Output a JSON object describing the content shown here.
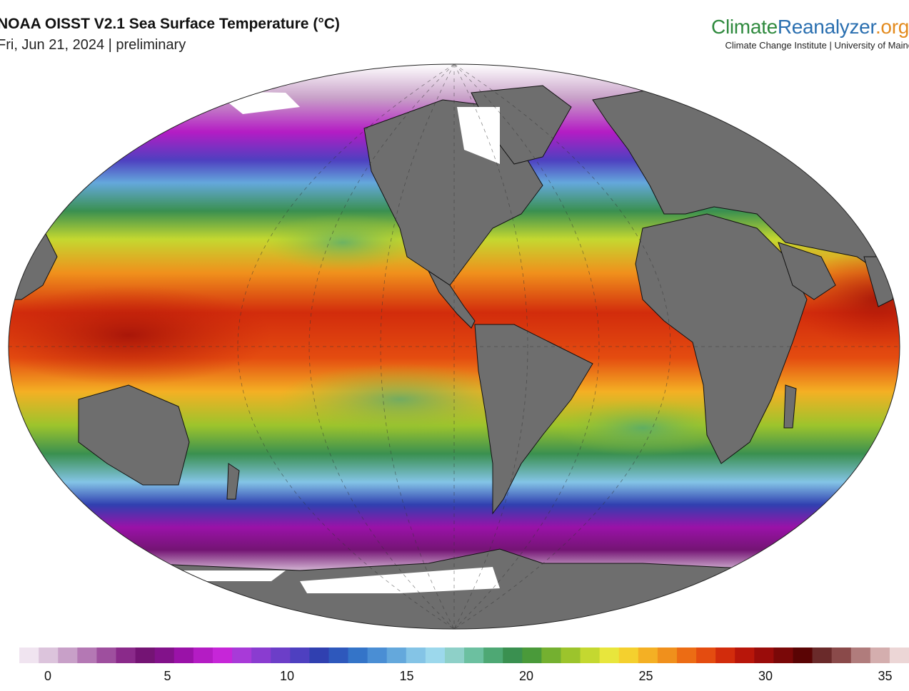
{
  "header": {
    "title": "NOAA OISST V2.1 Sea Surface Temperature (°C)",
    "subtitle": "Fri, Jun 21, 2024 | preliminary"
  },
  "brand": {
    "name_part1": "Climate",
    "name_part2": "Reanalyzer",
    "name_part3": ".org",
    "subtitle": "Climate Change Institute | University of Maine"
  },
  "map": {
    "projection": "robinson-like ellipse",
    "land_color": "#6e6e6e",
    "ice_color": "#ffffff",
    "border_color": "#111111"
  },
  "colorbar": {
    "ticks": [
      {
        "label": "0",
        "value": 0
      },
      {
        "label": "5",
        "value": 5
      },
      {
        "label": "10",
        "value": 10
      },
      {
        "label": "15",
        "value": 15
      },
      {
        "label": "20",
        "value": 20
      },
      {
        "label": "25",
        "value": 25
      },
      {
        "label": "30",
        "value": 30
      },
      {
        "label": "35",
        "value": 35
      }
    ],
    "range": [
      -2,
      36
    ],
    "palette": [
      "#ffffff",
      "#f0e4f0",
      "#dcc4dc",
      "#c8a0c8",
      "#b478b4",
      "#9e4f9e",
      "#8a2a8a",
      "#741474",
      "#82128a",
      "#9a12a8",
      "#b41cc4",
      "#c626d8",
      "#a83ad8",
      "#8a3cd0",
      "#6c3ec8",
      "#4e40c0",
      "#3040b0",
      "#2e58bc",
      "#3474c8",
      "#4a8ed4",
      "#64a8dc",
      "#84c4e6",
      "#9cd8ec",
      "#8ed0c8",
      "#6cc0a0",
      "#4ea874",
      "#3a9050",
      "#4a9a3a",
      "#74b030",
      "#9cc42c",
      "#c4d830",
      "#e8e63c",
      "#f4d02e",
      "#f4b024",
      "#f0901c",
      "#ec6c14",
      "#e44c10",
      "#d22c0c",
      "#b8160a",
      "#9a0c0a",
      "#7a0808",
      "#5a0404",
      "#6a2a2a",
      "#8a4a4a",
      "#b07c7c",
      "#d4aeae",
      "#ecd6d6"
    ]
  }
}
